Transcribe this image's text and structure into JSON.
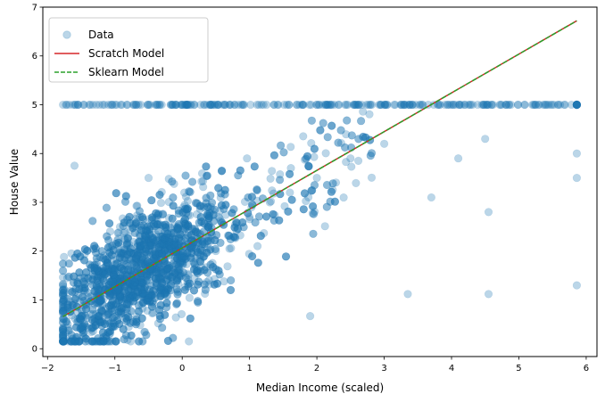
{
  "chart_data": {
    "type": "scatter",
    "title": "",
    "xlabel": "Median Income (scaled)",
    "ylabel": "House Value",
    "xlim": [
      -2.07,
      6.16
    ],
    "ylim": [
      -0.16,
      7.0
    ],
    "xticks": [
      -2,
      -1,
      0,
      1,
      2,
      3,
      4,
      5,
      6
    ],
    "yticks": [
      0,
      1,
      2,
      3,
      4,
      5,
      6,
      7
    ],
    "grid": false,
    "legend_position": "top-left",
    "series": [
      {
        "name": "Data",
        "kind": "scatter",
        "color": "#1f77b4",
        "alpha": 0.3,
        "approximate_points": 20640,
        "x_range": [
          -1.77,
          5.86
        ],
        "y_range": [
          0.15,
          5.0
        ],
        "cap_value": 5.0,
        "sample_points": [
          [
            -1.77,
            0.15
          ],
          [
            -1.7,
            0.5
          ],
          [
            -1.5,
            0.8
          ],
          [
            -1.2,
            1.0
          ],
          [
            -1.0,
            0.5
          ],
          [
            -0.8,
            1.2
          ],
          [
            -0.5,
            1.1
          ],
          [
            -0.2,
            1.5
          ],
          [
            0.0,
            1.9
          ],
          [
            0.3,
            2.2
          ],
          [
            0.5,
            2.0
          ],
          [
            0.8,
            2.6
          ],
          [
            1.0,
            2.7
          ],
          [
            1.3,
            3.0
          ],
          [
            1.6,
            3.2
          ],
          [
            2.0,
            3.5
          ],
          [
            2.5,
            3.9
          ],
          [
            3.0,
            4.2
          ],
          [
            0.1,
            0.15
          ],
          [
            -0.5,
            3.5
          ],
          [
            -1.6,
            3.75
          ],
          [
            1.9,
            0.67
          ],
          [
            3.35,
            1.12
          ],
          [
            4.55,
            1.12
          ],
          [
            4.55,
            2.8
          ],
          [
            5.86,
            1.3
          ],
          [
            5.86,
            3.5
          ],
          [
            5.86,
            4.0
          ],
          [
            3.7,
            3.1
          ],
          [
            4.1,
            3.9
          ],
          [
            4.5,
            4.3
          ],
          [
            -1.77,
            5.0
          ],
          [
            0.0,
            5.0
          ],
          [
            2.0,
            5.0
          ],
          [
            4.0,
            5.0
          ],
          [
            5.86,
            5.0
          ]
        ]
      },
      {
        "name": "Scratch Model",
        "kind": "line",
        "color": "#d62728",
        "dash": "solid",
        "points": [
          [
            -1.77,
            0.66
          ],
          [
            5.86,
            6.72
          ]
        ]
      },
      {
        "name": "Sklearn Model",
        "kind": "line",
        "color": "#2ca02c",
        "dash": "dashed",
        "points": [
          [
            -1.77,
            0.66
          ],
          [
            5.86,
            6.72
          ]
        ]
      }
    ],
    "legend": [
      "Data",
      "Scratch Model",
      "Sklearn Model"
    ]
  }
}
